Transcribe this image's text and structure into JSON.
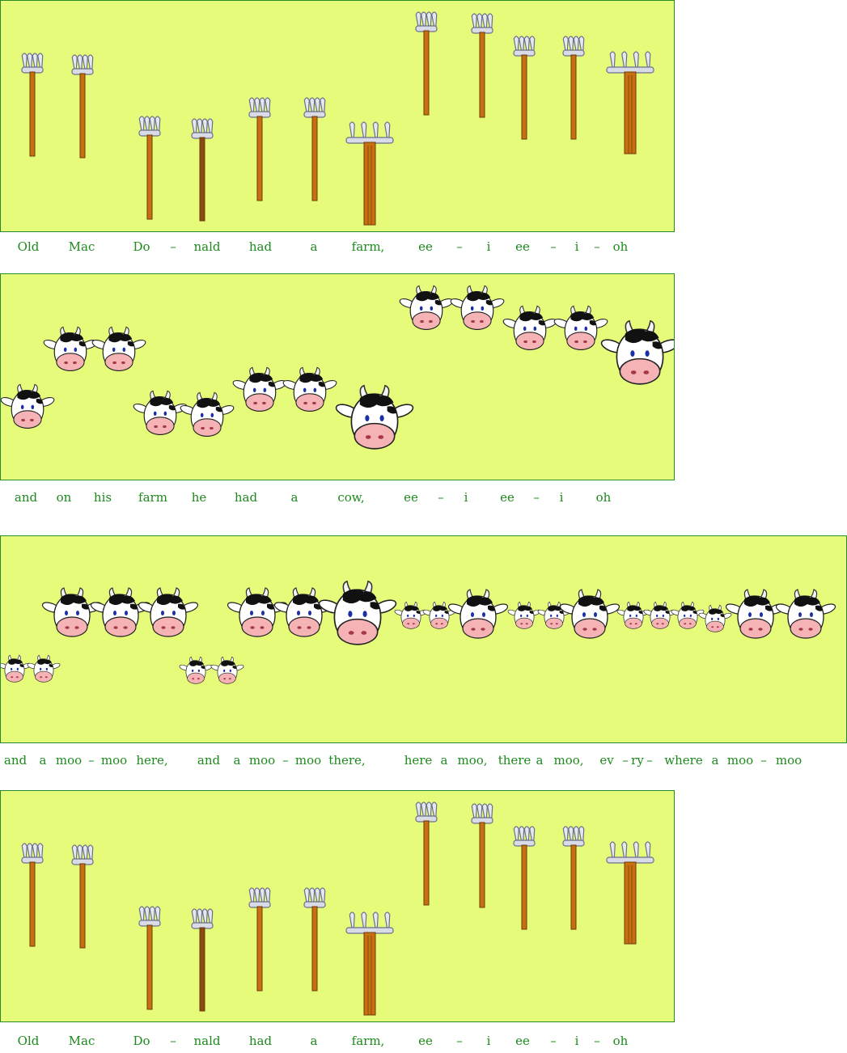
{
  "verse1": {
    "lyrics": [
      "Old",
      "Mac",
      "Do",
      "–",
      "nald",
      "had",
      "a",
      "farm,",
      "ee",
      "–",
      "i",
      "ee",
      "–",
      "i",
      "–",
      "oh"
    ],
    "notes_icon": "pitchfork-icon"
  },
  "verse2": {
    "lyrics": [
      "and",
      "on",
      "his",
      "farm",
      "he",
      "had",
      "a",
      "cow,",
      "ee",
      "–",
      "i",
      "ee",
      "–",
      "i",
      "oh"
    ],
    "notes_icon": "cow-head-icon"
  },
  "verse3": {
    "lyrics": [
      "and",
      "a",
      "moo",
      "–",
      "moo",
      "here,",
      "and",
      "a",
      "moo",
      "–",
      "moo",
      "there,",
      "here",
      "a",
      "moo,",
      "there",
      "a",
      "moo,",
      "ev",
      "–",
      "ry",
      "–",
      "where",
      "a",
      "moo",
      "–",
      "moo"
    ],
    "notes_icon": "cow-head-icon"
  },
  "verse4": {
    "lyrics": [
      "Old",
      "Mac",
      "Do",
      "–",
      "nald",
      "had",
      "a",
      "farm,",
      "ee",
      "–",
      "i",
      "ee",
      "–",
      "i",
      "–",
      "oh"
    ],
    "notes_icon": "pitchfork-icon"
  },
  "colors": {
    "panel_background": "#e6fb7a",
    "lyrics_text": "#1c8a1c",
    "handle": "#c8700f",
    "cow_nose": "#f6b3b6"
  }
}
